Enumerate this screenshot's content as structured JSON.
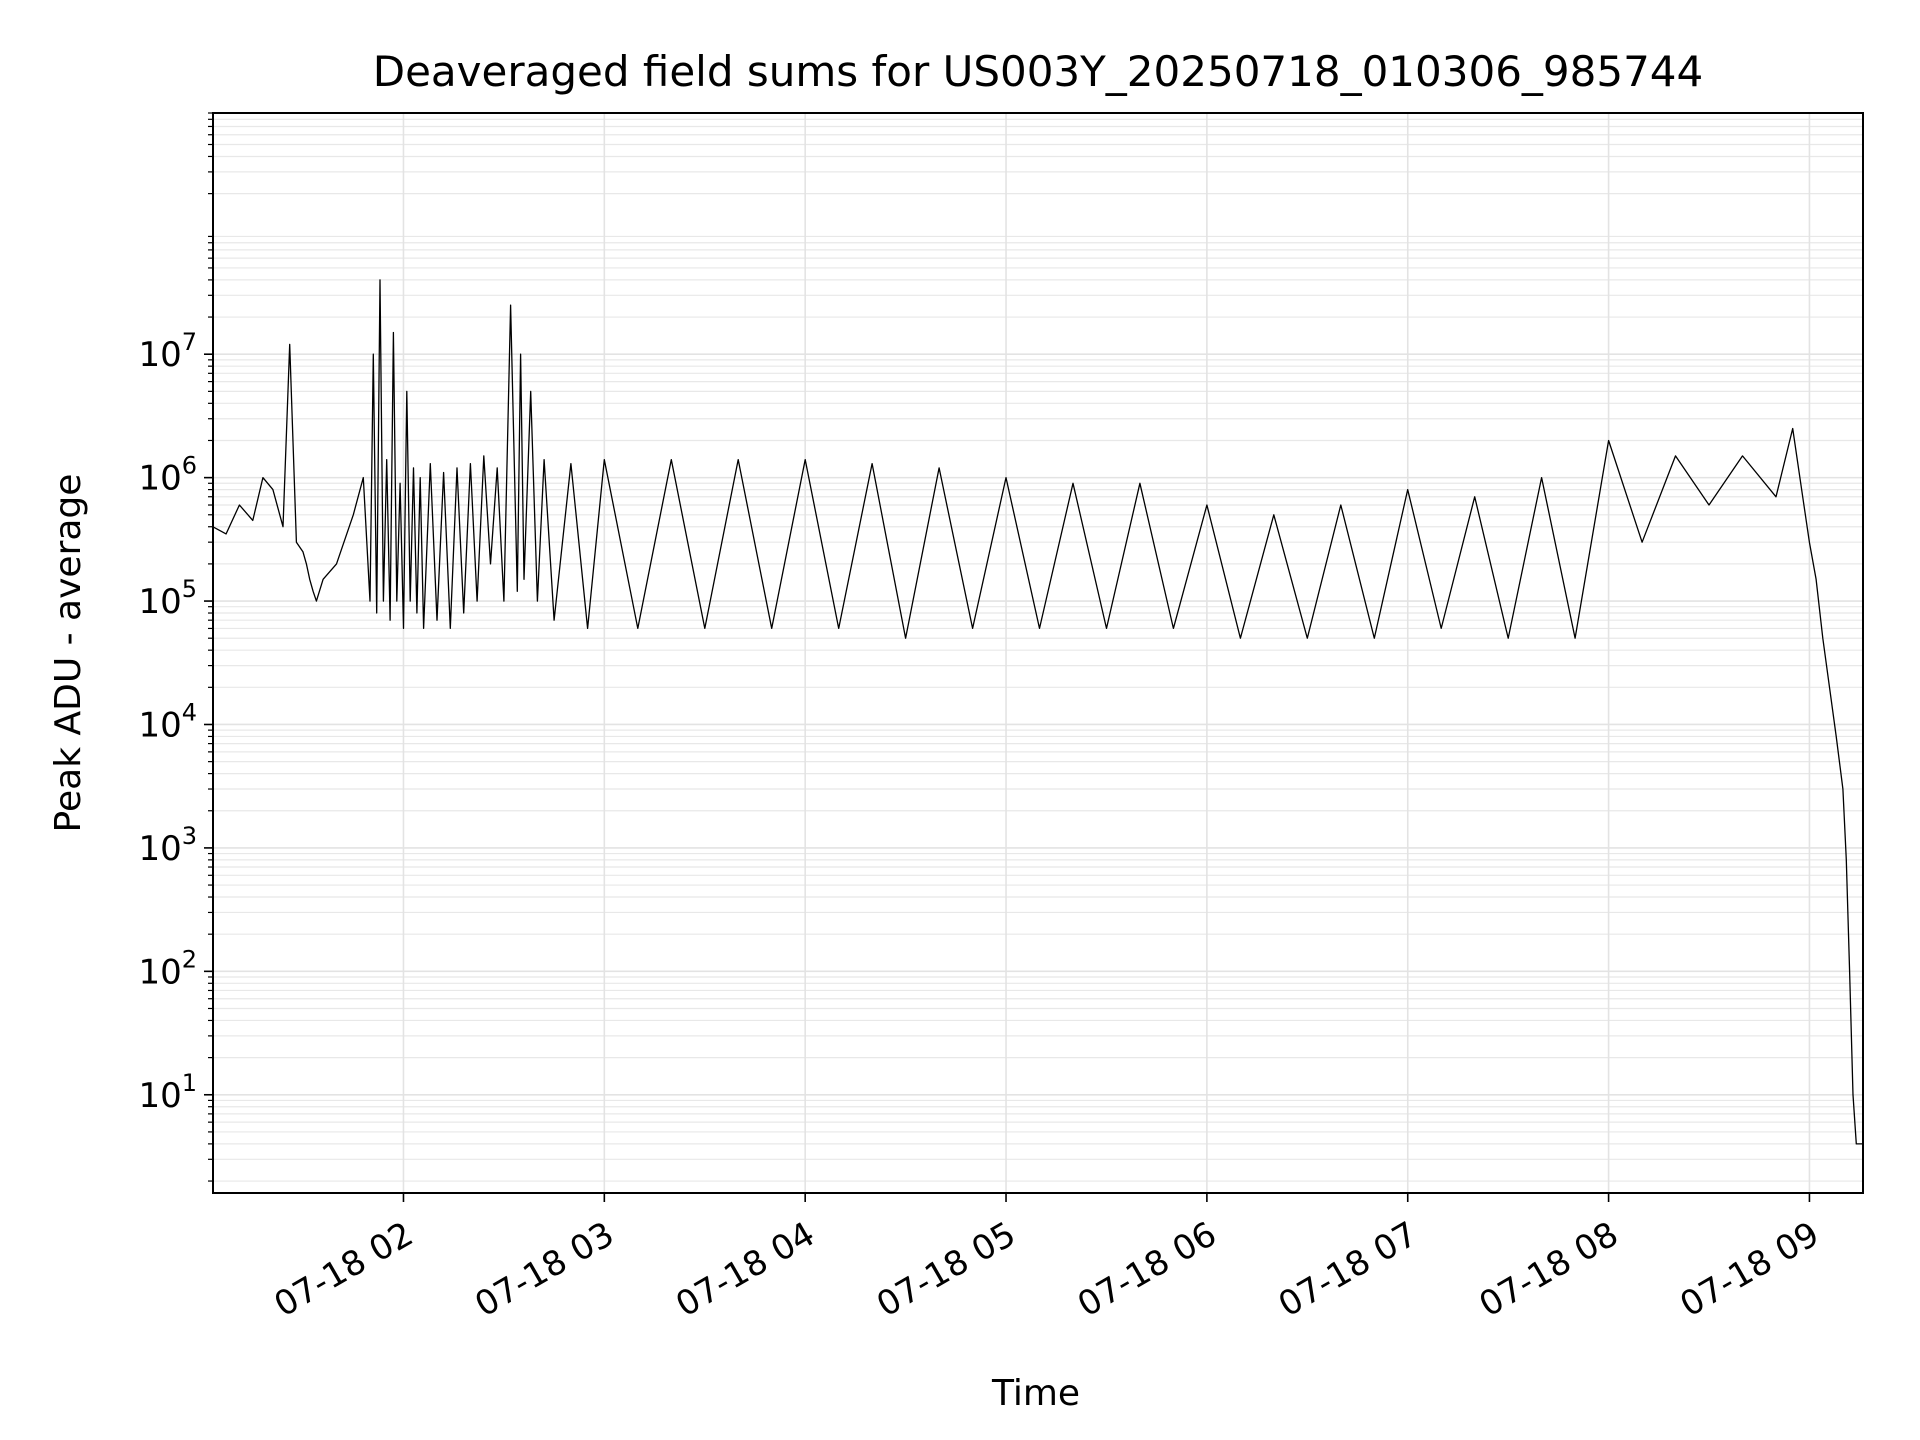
{
  "chart_data": {
    "type": "line",
    "title": "Deaveraged field sums for US003Y_20250718_010306_985744",
    "xlabel": "Time",
    "ylabel": "Peak ADU - average",
    "yscale": "log",
    "ylim": [
      1.6,
      900000000
    ],
    "xlim": [
      "2025-07-18 01:03:06",
      "2025-07-18 09:16:00"
    ],
    "grid": true,
    "line_color": "#000000",
    "x_ticks": [
      "07-18 02",
      "07-18 03",
      "07-18 04",
      "07-18 05",
      "07-18 06",
      "07-18 07",
      "07-18 08",
      "07-18 09"
    ],
    "y_ticks": [
      {
        "base": "10",
        "exp": "1",
        "value": 10
      },
      {
        "base": "10",
        "exp": "2",
        "value": 100
      },
      {
        "base": "10",
        "exp": "3",
        "value": 1000
      },
      {
        "base": "10",
        "exp": "4",
        "value": 10000
      },
      {
        "base": "10",
        "exp": "5",
        "value": 100000
      },
      {
        "base": "10",
        "exp": "6",
        "value": 1000000
      },
      {
        "base": "10",
        "exp": "7",
        "value": 10000000
      }
    ],
    "series": [
      {
        "x": [
          "2025-07-18 01:03",
          "2025-07-18 01:07",
          "2025-07-18 01:11",
          "2025-07-18 01:15",
          "2025-07-18 01:18",
          "2025-07-18 01:21",
          "2025-07-18 01:24",
          "2025-07-18 01:26",
          "2025-07-18 01:28",
          "2025-07-18 01:30",
          "2025-07-18 01:31",
          "2025-07-18 01:32",
          "2025-07-18 01:33",
          "2025-07-18 01:34",
          "2025-07-18 01:36",
          "2025-07-18 01:40",
          "2025-07-18 01:45",
          "2025-07-18 01:48",
          "2025-07-18 01:50",
          "2025-07-18 01:51",
          "2025-07-18 01:52",
          "2025-07-18 01:53",
          "2025-07-18 01:54",
          "2025-07-18 01:55",
          "2025-07-18 01:56",
          "2025-07-18 01:57",
          "2025-07-18 01:58",
          "2025-07-18 01:59",
          "2025-07-18 02:00",
          "2025-07-18 02:01",
          "2025-07-18 02:02",
          "2025-07-18 02:03",
          "2025-07-18 02:04",
          "2025-07-18 02:05",
          "2025-07-18 02:06",
          "2025-07-18 02:08",
          "2025-07-18 02:10",
          "2025-07-18 02:12",
          "2025-07-18 02:14",
          "2025-07-18 02:16",
          "2025-07-18 02:18",
          "2025-07-18 02:20",
          "2025-07-18 02:22",
          "2025-07-18 02:24",
          "2025-07-18 02:26",
          "2025-07-18 02:28",
          "2025-07-18 02:30",
          "2025-07-18 02:32",
          "2025-07-18 02:34",
          "2025-07-18 02:35",
          "2025-07-18 02:36",
          "2025-07-18 02:38",
          "2025-07-18 02:40",
          "2025-07-18 02:42",
          "2025-07-18 02:45",
          "2025-07-18 02:50",
          "2025-07-18 02:55",
          "2025-07-18 03:00",
          "2025-07-18 03:10",
          "2025-07-18 03:20",
          "2025-07-18 03:30",
          "2025-07-18 03:40",
          "2025-07-18 03:50",
          "2025-07-18 04:00",
          "2025-07-18 04:10",
          "2025-07-18 04:20",
          "2025-07-18 04:30",
          "2025-07-18 04:40",
          "2025-07-18 04:50",
          "2025-07-18 05:00",
          "2025-07-18 05:10",
          "2025-07-18 05:20",
          "2025-07-18 05:30",
          "2025-07-18 05:40",
          "2025-07-18 05:50",
          "2025-07-18 06:00",
          "2025-07-18 06:10",
          "2025-07-18 06:20",
          "2025-07-18 06:30",
          "2025-07-18 06:40",
          "2025-07-18 06:50",
          "2025-07-18 07:00",
          "2025-07-18 07:10",
          "2025-07-18 07:20",
          "2025-07-18 07:30",
          "2025-07-18 07:40",
          "2025-07-18 07:50",
          "2025-07-18 08:00",
          "2025-07-18 08:10",
          "2025-07-18 08:20",
          "2025-07-18 08:30",
          "2025-07-18 08:40",
          "2025-07-18 08:50",
          "2025-07-18 08:55",
          "2025-07-18 08:58",
          "2025-07-18 09:00",
          "2025-07-18 09:02",
          "2025-07-18 09:04",
          "2025-07-18 09:06",
          "2025-07-18 09:08",
          "2025-07-18 09:10",
          "2025-07-18 09:11",
          "2025-07-18 09:12",
          "2025-07-18 09:13",
          "2025-07-18 09:14",
          "2025-07-18 09:16"
        ],
        "y": [
          400000,
          350000,
          600000,
          450000,
          1000000,
          800000,
          400000,
          12000000,
          300000,
          250000,
          200000,
          150000,
          120000,
          100000,
          150000,
          200000,
          500000,
          1000000,
          100000,
          10000000,
          80000,
          40000000,
          100000,
          1400000,
          70000,
          15000000,
          100000,
          900000,
          60000,
          5000000,
          100000,
          1200000,
          80000,
          1000000,
          60000,
          1300000,
          70000,
          1100000,
          60000,
          1200000,
          80000,
          1300000,
          100000,
          1500000,
          200000,
          1200000,
          100000,
          25000000,
          120000,
          10000000,
          150000,
          5000000,
          100000,
          1400000,
          70000,
          1300000,
          60000,
          1400000,
          60000,
          1400000,
          60000,
          1400000,
          60000,
          1400000,
          60000,
          1300000,
          50000,
          1200000,
          60000,
          1000000,
          60000,
          900000,
          60000,
          900000,
          60000,
          600000,
          50000,
          500000,
          50000,
          600000,
          50000,
          800000,
          60000,
          700000,
          50000,
          1000000,
          50000,
          2000000,
          300000,
          1500000,
          600000,
          1500000,
          700000,
          2500000,
          700000,
          300000,
          150000,
          50000,
          20000,
          8000,
          3000,
          800,
          100,
          10,
          4,
          4
        ]
      }
    ]
  }
}
